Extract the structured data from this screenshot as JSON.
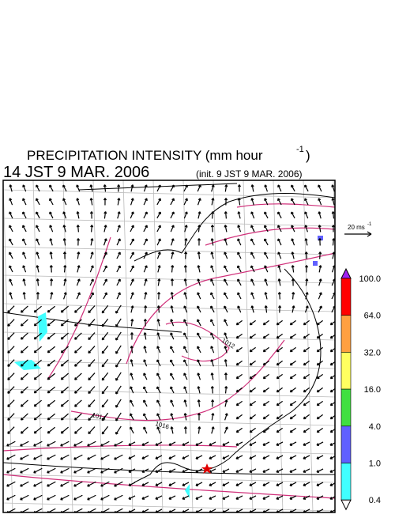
{
  "header": {
    "title": "PRECIPITATION INTENSITY (mm hour",
    "title_exponent": "-1",
    "title_close": ")",
    "valid_time": "14 JST 9 MAR. 2006",
    "init_time": "(init. 9 JST 9 MAR. 2006)"
  },
  "wind_scale": {
    "label": "20 ms",
    "exponent": "-1"
  },
  "colorbar": {
    "over_color": "#a020f0",
    "under_color": "#ffffff",
    "colors": [
      "#ff0000",
      "#ffa040",
      "#ffff60",
      "#40e040",
      "#6060ff",
      "#40ffff"
    ],
    "labels": [
      "100.0",
      "64.0",
      "32.0",
      "16.0",
      "4.0",
      "1.0",
      "0.4"
    ]
  },
  "isobar_labels": [
    "1014",
    "1016",
    "1012"
  ]
}
